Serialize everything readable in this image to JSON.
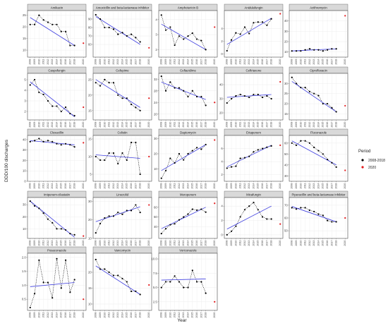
{
  "figure": {
    "ylabel": "DDD/100 discharges",
    "xlabel": "Year"
  },
  "legend": {
    "title": "Period",
    "items": [
      "2008-2018",
      "2020"
    ]
  },
  "colors": {
    "points": "#000000",
    "connector": "#000000",
    "trend": "#4040e0",
    "period_2020": "#e41a1c",
    "strip": "#d9d9d9",
    "panel": "#ffffff",
    "grid": "#ececec"
  },
  "chart_data": {
    "type": "scatter",
    "x_tick_labels": [
      "2008",
      "2009",
      "2010",
      "2011",
      "2012",
      "2013",
      "2014",
      "2015",
      "2016",
      "2017",
      "2018",
      "2020"
    ],
    "panels": [
      {
        "name": "Amikacin",
        "yticks": [
          10,
          15,
          20,
          25
        ],
        "ylim": [
          7,
          27
        ],
        "x": [
          2008,
          2009,
          2010,
          2011,
          2012,
          2013,
          2014,
          2015,
          2016,
          2017,
          2018
        ],
        "y": [
          21,
          21,
          25,
          23,
          22,
          21,
          21,
          18,
          18,
          12,
          12
        ],
        "y2020": 13,
        "trend": [
          24,
          12
        ]
      },
      {
        "name": "Amoxicillin and beta-lactamase inhibitor",
        "yticks": [
          60,
          70,
          80,
          90
        ],
        "ylim": [
          45,
          100
        ],
        "x": [
          2008,
          2009,
          2010,
          2011,
          2012,
          2013,
          2014,
          2015,
          2016,
          2017,
          2018
        ],
        "y": [
          95,
          90,
          80,
          80,
          78,
          72,
          74,
          70,
          72,
          68,
          63
        ],
        "y2020": 56,
        "trend": [
          93,
          60
        ]
      },
      {
        "name": "Amphotericin B",
        "yticks": [
          2,
          3,
          4
        ],
        "ylim": [
          1.5,
          4.6
        ],
        "x": [
          2008,
          2009,
          2010,
          2011,
          2012,
          2013,
          2014,
          2015,
          2016,
          2017,
          2018
        ],
        "y": [
          4.3,
          3.3,
          3.5,
          2.3,
          2.9,
          2.7,
          2.9,
          3.1,
          2.7,
          2.6,
          2.0
        ],
        "y2020": 3.5,
        "trend": [
          3.7,
          2.0
        ]
      },
      {
        "name": "Anidulafungin",
        "yticks": [
          0,
          2,
          4
        ],
        "ylim": [
          -0.5,
          6.8
        ],
        "x": [
          2008,
          2009,
          2010,
          2011,
          2012,
          2013,
          2014,
          2015,
          2016,
          2017,
          2018
        ],
        "y": [
          0.5,
          2.2,
          3.3,
          3.1,
          4.2,
          3.2,
          4.9,
          5.0,
          5.0,
          4.5,
          5.5
        ],
        "y2020": 6.3,
        "trend": [
          1.5,
          5.6
        ]
      },
      {
        "name": "Azithromycin",
        "yticks": [
          10,
          20,
          30,
          40
        ],
        "ylim": [
          5,
          50
        ],
        "x": [
          2008,
          2009,
          2010,
          2011,
          2012,
          2013,
          2014,
          2015,
          2016,
          2017,
          2018
        ],
        "y": [
          11,
          11,
          11,
          12,
          13,
          12,
          12,
          11,
          12,
          13,
          13
        ],
        "y2020": 45,
        "trend": [
          11,
          13
        ]
      },
      {
        "name": "Caspofungin",
        "yticks": [
          2,
          3,
          4,
          5
        ],
        "ylim": [
          1.2,
          5.6
        ],
        "x": [
          2008,
          2009,
          2010,
          2011,
          2012,
          2013,
          2014,
          2015,
          2016,
          2017,
          2018
        ],
        "y": [
          4.5,
          5.0,
          3.8,
          3.6,
          3.0,
          2.5,
          2.5,
          2.0,
          2.4,
          1.8,
          1.6
        ],
        "y2020": 2.4,
        "trend": [
          4.8,
          1.5
        ]
      },
      {
        "name": "Cefepime",
        "yticks": [
          15,
          20,
          25
        ],
        "ylim": [
          12,
          27
        ],
        "x": [
          2008,
          2009,
          2010,
          2011,
          2012,
          2013,
          2014,
          2015,
          2016,
          2017,
          2018
        ],
        "y": [
          24,
          23,
          25,
          24,
          24,
          20,
          19,
          19,
          17,
          16,
          15
        ],
        "y2020": 19,
        "trend": [
          25,
          16
        ]
      },
      {
        "name": "Ceftazidime",
        "yticks": [
          20,
          24,
          28,
          32
        ],
        "ylim": [
          18,
          34
        ],
        "x": [
          2008,
          2009,
          2010,
          2011,
          2012,
          2013,
          2014,
          2015,
          2016,
          2017,
          2018
        ],
        "y": [
          33,
          28,
          31,
          29,
          29,
          28,
          26,
          28,
          26,
          26,
          23
        ],
        "y2020": 24,
        "trend": [
          31,
          25
        ]
      },
      {
        "name": "Ceftriaxone",
        "yticks": [
          20,
          30,
          40
        ],
        "ylim": [
          15,
          48
        ],
        "x": [
          2008,
          2009,
          2010,
          2011,
          2012,
          2013,
          2014,
          2015,
          2016,
          2017,
          2018
        ],
        "y": [
          27,
          30,
          32,
          33,
          32,
          31,
          33,
          33,
          31,
          32,
          30
        ],
        "y2020": 42,
        "trend": [
          31,
          33
        ]
      },
      {
        "name": "Ciprofloxacin",
        "yticks": [
          15,
          20,
          25,
          30
        ],
        "ylim": [
          12,
          35
        ],
        "x": [
          2008,
          2009,
          2010,
          2011,
          2012,
          2013,
          2014,
          2015,
          2016,
          2017,
          2018
        ],
        "y": [
          33,
          30,
          28,
          28,
          26,
          25,
          24,
          20,
          20,
          18,
          16
        ],
        "y2020": 19,
        "trend": [
          31,
          16
        ]
      },
      {
        "name": "Cloxacillin",
        "yticks": [
          0,
          10,
          20,
          30,
          40
        ],
        "ylim": [
          0,
          44
        ],
        "x": [
          2008,
          2009,
          2010,
          2011,
          2012,
          2013,
          2014,
          2015,
          2016,
          2017,
          2018
        ],
        "y": [
          38,
          39,
          41,
          38,
          39,
          38,
          36,
          35,
          36,
          35,
          33
        ],
        "y2020": 37,
        "trend": [
          39,
          35
        ]
      },
      {
        "name": "Colistin",
        "yticks": [
          5,
          10,
          15
        ],
        "ylim": [
          3,
          16
        ],
        "x": [
          2008,
          2009,
          2010,
          2011,
          2012,
          2013,
          2014,
          2015,
          2016,
          2017,
          2018
        ],
        "y": [
          10,
          9,
          9,
          11,
          11,
          8,
          11,
          9,
          14,
          14,
          5
        ],
        "y2020": 10,
        "trend": [
          10.5,
          9.5
        ]
      },
      {
        "name": "Daptomycin",
        "yticks": [
          10,
          20,
          30
        ],
        "ylim": [
          2,
          32
        ],
        "x": [
          2008,
          2009,
          2010,
          2011,
          2012,
          2013,
          2014,
          2015,
          2016,
          2017,
          2018
        ],
        "y": [
          4,
          9,
          17,
          14,
          20,
          16,
          20,
          22,
          24,
          23,
          26
        ],
        "y2020": 29,
        "trend": [
          9,
          26
        ]
      },
      {
        "name": "Ertapenem",
        "yticks": [
          2,
          4,
          6
        ],
        "ylim": [
          1,
          8
        ],
        "x": [
          2008,
          2009,
          2010,
          2011,
          2012,
          2013,
          2014,
          2015,
          2016,
          2017,
          2018
        ],
        "y": [
          3.0,
          3.2,
          3.3,
          4.5,
          4.6,
          4.8,
          5.5,
          5.8,
          6.0,
          6.2,
          6.4
        ],
        "y2020": 6.5,
        "trend": [
          3.2,
          6.5
        ]
      },
      {
        "name": "Fluconazole",
        "yticks": [
          30,
          40,
          50,
          60
        ],
        "ylim": [
          25,
          67
        ],
        "x": [
          2008,
          2009,
          2010,
          2011,
          2012,
          2013,
          2014,
          2015,
          2016,
          2017,
          2018
        ],
        "y": [
          60,
          58,
          62,
          62,
          60,
          56,
          53,
          50,
          45,
          42,
          38
        ],
        "y2020": 35,
        "trend": [
          62,
          40
        ]
      },
      {
        "name": "Imipenem-cilastatin",
        "yticks": [
          10,
          20,
          30
        ],
        "ylim": [
          2,
          36
        ],
        "x": [
          2008,
          2009,
          2010,
          2011,
          2012,
          2013,
          2014,
          2015,
          2016,
          2017,
          2018
        ],
        "y": [
          33,
          29,
          27,
          23,
          18,
          15,
          10,
          10,
          9,
          6,
          5
        ],
        "y2020": 4,
        "trend": [
          33,
          3
        ]
      },
      {
        "name": "Linezolid",
        "yticks": [
          10,
          20,
          30
        ],
        "ylim": [
          10,
          32
        ],
        "x": [
          2008,
          2009,
          2010,
          2011,
          2012,
          2013,
          2014,
          2015,
          2016,
          2017,
          2018
        ],
        "y": [
          13,
          18,
          21,
          22,
          22,
          24,
          23,
          25,
          25,
          28,
          24
        ],
        "y2020": 28,
        "trend": [
          19,
          27
        ]
      },
      {
        "name": "Meropenem",
        "yticks": [
          40,
          50,
          60
        ],
        "ylim": [
          28,
          70
        ],
        "x": [
          2008,
          2009,
          2010,
          2011,
          2012,
          2013,
          2014,
          2015,
          2016,
          2017,
          2018
        ],
        "y": [
          33,
          38,
          42,
          43,
          47,
          50,
          53,
          58,
          57,
          58,
          55
        ],
        "y2020": 64,
        "trend": [
          38,
          60
        ]
      },
      {
        "name": "Micafungin",
        "yticks": [
          0,
          2,
          4
        ],
        "ylim": [
          -0.5,
          5.2
        ],
        "x": [
          2008,
          2009,
          2010,
          2011,
          2012,
          2013,
          2014,
          2015,
          2016,
          2017,
          2018
        ],
        "y": [
          0,
          0.5,
          1.2,
          2.5,
          3.5,
          4.0,
          4.5,
          3.5,
          2.5,
          2.2,
          2.2
        ],
        "y2020": 1.5,
        "trend": [
          0.8,
          4.0
        ]
      },
      {
        "name": "Piperacillin and beta-lactamase inhibitor",
        "yticks": [
          50,
          60,
          70
        ],
        "ylim": [
          44,
          76
        ],
        "x": [
          2008,
          2009,
          2010,
          2011,
          2012,
          2013,
          2014,
          2015,
          2016,
          2017,
          2018
        ],
        "y": [
          68,
          67,
          68,
          68,
          66,
          65,
          63,
          62,
          58,
          57,
          57
        ],
        "y2020": 60,
        "trend": [
          69,
          57
        ]
      },
      {
        "name": "Posaconazole",
        "yticks": [
          0.5,
          1.0,
          1.5,
          2.0
        ],
        "ylim": [
          0.1,
          2.15
        ],
        "x": [
          2008,
          2009,
          2010,
          2011,
          2012,
          2013,
          2014,
          2015,
          2016,
          2017,
          2018
        ],
        "y": [
          0.2,
          0.7,
          1.9,
          1.1,
          1.1,
          0.55,
          1.95,
          0.9,
          1.9,
          0.75,
          1.2
        ],
        "y2020": 0.5,
        "trend": [
          0.95,
          1.1
        ]
      },
      {
        "name": "Vancomycin",
        "yticks": [
          10,
          15,
          20
        ],
        "ylim": [
          8,
          26
        ],
        "x": [
          2008,
          2009,
          2010,
          2011,
          2012,
          2013,
          2014,
          2015,
          2016,
          2017,
          2018
        ],
        "y": [
          24,
          21,
          21,
          20,
          19,
          19,
          18,
          17,
          14,
          14,
          13
        ],
        "y2020": 16,
        "trend": [
          22,
          13
        ]
      },
      {
        "name": "Voriconazole",
        "yticks": [
          2.5,
          5.0,
          7.5,
          10.0
        ],
        "ylim": [
          1,
          11
        ],
        "x": [
          2008,
          2009,
          2010,
          2011,
          2012,
          2013,
          2014,
          2015,
          2016,
          2017,
          2018
        ],
        "y": [
          5,
          6,
          6,
          7,
          6,
          5,
          5,
          8,
          6,
          6,
          4
        ],
        "y2020": 2.5,
        "trend": [
          6.3,
          6.5
        ]
      }
    ]
  }
}
